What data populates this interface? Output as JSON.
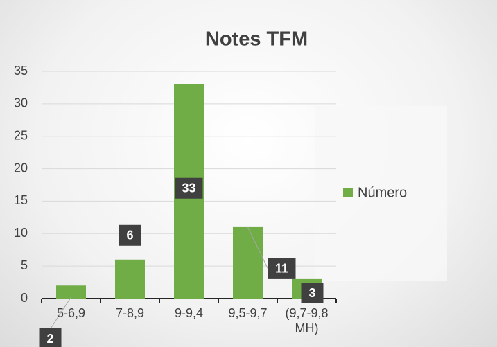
{
  "chart_data": {
    "type": "bar",
    "title": "Notes TFM",
    "categories": [
      "5-6,9",
      "7-8,9",
      "9-9,4",
      "9,5-9,7",
      "(9,7-9,8 MH)"
    ],
    "series": [
      {
        "name": "Número",
        "color": "#70ad47",
        "values": [
          2,
          6,
          33,
          11,
          3
        ]
      }
    ],
    "ylim": [
      0,
      35
    ],
    "yticks": [
      0,
      5,
      10,
      15,
      20,
      25,
      30,
      35
    ],
    "grid": true,
    "legend": "right"
  }
}
